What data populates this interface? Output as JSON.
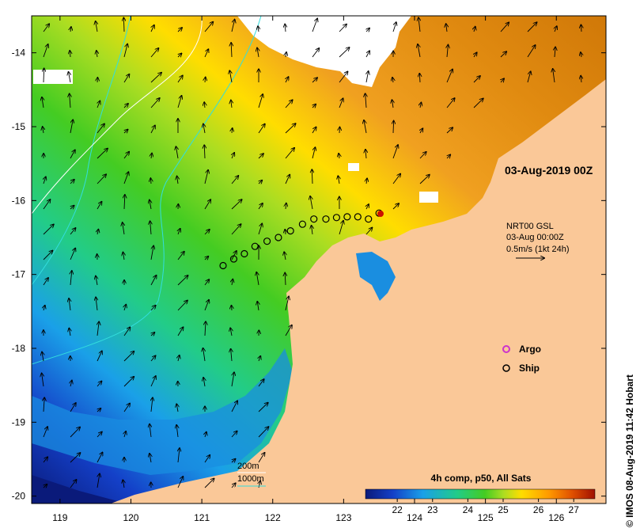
{
  "map": {
    "title": "03-Aug-2019 00Z",
    "credit": "© IMOS 08-Aug-2019 11:42 Hobart",
    "x_ticks": [
      "119",
      "120",
      "121",
      "122",
      "123",
      "124",
      "125",
      "126"
    ],
    "y_ticks": [
      "-14",
      "-15",
      "-16",
      "-17",
      "-18",
      "-19",
      "-20"
    ],
    "lon_range": [
      118.6,
      126.7
    ],
    "lat_range": [
      -20.1,
      -13.5
    ]
  },
  "current_legend": {
    "line1": "NRT00 GSL",
    "line2": "03-Aug 00:00Z",
    "line3": "0.5m/s (1kt 24h)"
  },
  "symbol_legend": {
    "argo_label": "Argo",
    "ship_label": "Ship",
    "argo_color": "#cc33cc",
    "ship_color": "#000000"
  },
  "depth_legend": {
    "contour_200": "200m",
    "contour_1000": "1000m",
    "color_200": "#ffffff",
    "color_1000": "#33dddd"
  },
  "colorbar": {
    "title": "4h comp, p50, All Sats",
    "ticks": [
      "22",
      "23",
      "24",
      "25",
      "26",
      "27"
    ],
    "range": [
      21.1,
      27.6
    ],
    "colors": [
      "#0a1a7a",
      "#1440c8",
      "#1aa0e8",
      "#22cc88",
      "#44cc22",
      "#aadd22",
      "#ffdd00",
      "#ff9900",
      "#e05000",
      "#a01000"
    ]
  },
  "ship_track": [
    {
      "lon": 123.5,
      "lat": -16.17
    },
    {
      "lon": 123.35,
      "lat": -16.25
    },
    {
      "lon": 123.2,
      "lat": -16.22
    },
    {
      "lon": 123.05,
      "lat": -16.22
    },
    {
      "lon": 122.9,
      "lat": -16.23
    },
    {
      "lon": 122.75,
      "lat": -16.25
    },
    {
      "lon": 122.58,
      "lat": -16.25
    },
    {
      "lon": 122.42,
      "lat": -16.32
    },
    {
      "lon": 122.25,
      "lat": -16.41
    },
    {
      "lon": 122.08,
      "lat": -16.5
    },
    {
      "lon": 121.92,
      "lat": -16.55
    },
    {
      "lon": 121.75,
      "lat": -16.62
    },
    {
      "lon": 121.6,
      "lat": -16.72
    },
    {
      "lon": 121.45,
      "lat": -16.79
    },
    {
      "lon": 121.3,
      "lat": -16.88
    }
  ]
}
